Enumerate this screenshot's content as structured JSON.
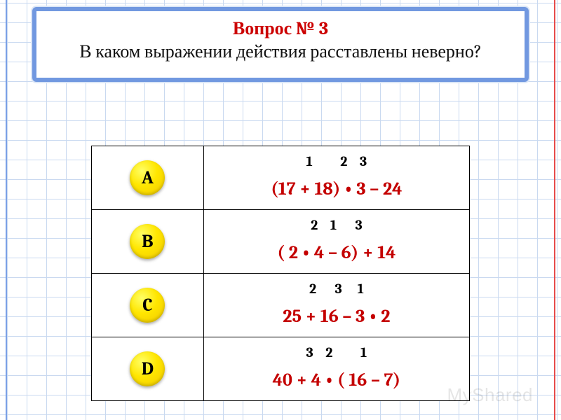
{
  "colors": {
    "accent_red": "#cc0000",
    "expr_red": "#c40000",
    "grid_line": "#c9d9f0",
    "box_border": "#7198e0",
    "button_yellow": "#ffe600",
    "margin_blue": "#7aa0e6",
    "margin_red": "#e64b4b"
  },
  "question": {
    "title": "Вопрос № 3",
    "text": "В каком выражении действия расставлены неверно?"
  },
  "options": [
    {
      "label": "A",
      "order": "1         2    3",
      "expression": "(17 + 18) • 3 – 24"
    },
    {
      "label": "B",
      "order": "2    1      3",
      "expression": "( 2 • 4 – 6) + 14"
    },
    {
      "label": "C",
      "order": "2      3     1",
      "expression": "25 + 16 – 3 • 2"
    },
    {
      "label": "D",
      "order": "3    2         1",
      "expression": "40 + 4 • ( 16 – 7)"
    }
  ],
  "watermark": "MyShared"
}
